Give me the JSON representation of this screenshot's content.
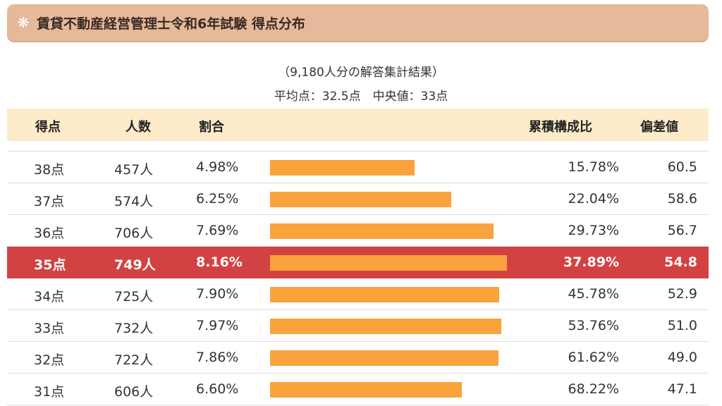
{
  "title": {
    "icon": "asterisk-icon",
    "text": "賃貸不動産経営管理士令和6年試験 得点分布"
  },
  "summary": {
    "respondents": "（9,180人分の解答集計結果）",
    "stats": "平均点：32.5点　中央値：33点"
  },
  "headers": {
    "score": "得点",
    "count": "人数",
    "ratio": "割合",
    "cumulative": "累積構成比",
    "deviation": "偏差値"
  },
  "colors": {
    "bar": "#faa23b",
    "highlight_row": "#d24242",
    "header_bg": "#fdebc9",
    "title_bg": "#e5b999"
  },
  "rows": [
    {
      "score": "38点",
      "count": "457人",
      "ratio": "4.98%",
      "cumulative": "15.78%",
      "deviation": "60.5",
      "highlight": false
    },
    {
      "score": "37点",
      "count": "574人",
      "ratio": "6.25%",
      "cumulative": "22.04%",
      "deviation": "58.6",
      "highlight": false
    },
    {
      "score": "36点",
      "count": "706人",
      "ratio": "7.69%",
      "cumulative": "29.73%",
      "deviation": "56.7",
      "highlight": false
    },
    {
      "score": "35点",
      "count": "749人",
      "ratio": "8.16%",
      "cumulative": "37.89%",
      "deviation": "54.8",
      "highlight": true
    },
    {
      "score": "34点",
      "count": "725人",
      "ratio": "7.90%",
      "cumulative": "45.78%",
      "deviation": "52.9",
      "highlight": false
    },
    {
      "score": "33点",
      "count": "732人",
      "ratio": "7.97%",
      "cumulative": "53.76%",
      "deviation": "51.0",
      "highlight": false
    },
    {
      "score": "32点",
      "count": "722人",
      "ratio": "7.86%",
      "cumulative": "61.62%",
      "deviation": "49.0",
      "highlight": false
    },
    {
      "score": "31点",
      "count": "606人",
      "ratio": "6.60%",
      "cumulative": "68.22%",
      "deviation": "47.1",
      "highlight": false
    }
  ],
  "chart_data": {
    "type": "bar",
    "orientation": "horizontal",
    "categories": [
      "38点",
      "37点",
      "36点",
      "35点",
      "34点",
      "33点",
      "32点",
      "31点"
    ],
    "values": [
      4.98,
      6.25,
      7.69,
      8.16,
      7.9,
      7.97,
      7.86,
      6.6
    ],
    "counts": [
      457,
      574,
      706,
      749,
      725,
      732,
      722,
      606
    ],
    "cumulative": [
      15.78,
      22.04,
      29.73,
      37.89,
      45.78,
      53.76,
      61.62,
      68.22
    ],
    "deviation": [
      60.5,
      58.6,
      56.7,
      54.8,
      52.9,
      51.0,
      49.0,
      47.1
    ],
    "xlim": [
      0,
      8.16
    ],
    "grid": false
  }
}
